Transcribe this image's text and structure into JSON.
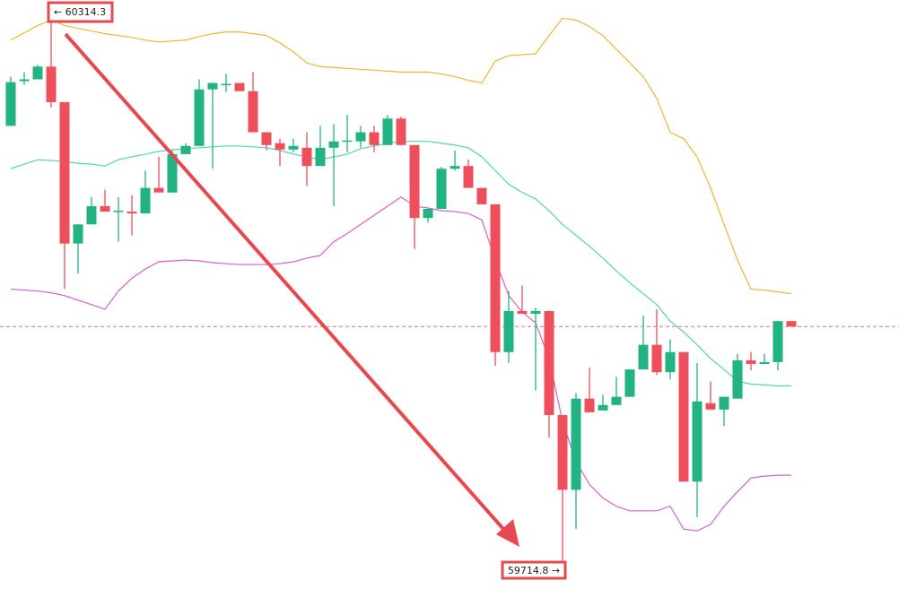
{
  "chart_data": {
    "type": "candlestick",
    "up_color": "#22b383",
    "down_color": "#ef4f5b",
    "open": [
      60194,
      60243,
      60245,
      60259,
      60220,
      60065,
      60086,
      60106,
      60100,
      60100,
      60098,
      60126,
      60121,
      60163,
      60172,
      60234,
      60239,
      60241,
      60232,
      60187,
      60175,
      60168,
      60170,
      60150,
      60170,
      60177,
      60177,
      60187,
      60173,
      60202,
      60173,
      60093,
      60103,
      60147,
      60150,
      60126,
      60108,
      59946,
      59991,
      59988,
      59991,
      59877,
      59795,
      59895,
      59882,
      59888,
      59897,
      59927,
      59954,
      59924,
      59946,
      59804,
      59890,
      59883,
      59895,
      59937,
      59933,
      59935,
      59980
    ],
    "high": [
      60248,
      60253,
      60261,
      60314.3,
      60220,
      60086,
      60116,
      60124,
      60116,
      60118,
      60145,
      60160,
      60167,
      60175,
      60245,
      60241,
      60251,
      60241,
      60253,
      60187,
      60180,
      60180,
      60187,
      60194,
      60196,
      60206,
      60194,
      60194,
      60206,
      60204,
      60173,
      60103,
      60149,
      60167,
      60157,
      60126,
      60108,
      60013,
      60019,
      59995,
      59991,
      59877,
      59901,
      59929,
      59899,
      59919,
      59927,
      59986,
      59993,
      59960,
      59946,
      59934,
      59914,
      59897,
      59944,
      59946,
      59944,
      59980,
      59980
    ],
    "low": [
      60194,
      60239,
      60245,
      60214,
      60015,
      60032,
      60086,
      60100,
      60067,
      60074,
      60098,
      60121,
      60121,
      60163,
      60172,
      60147,
      60231,
      60232,
      60187,
      60167,
      60150,
      60165,
      60128,
      60150,
      60106,
      60165,
      60170,
      60165,
      60173,
      60173,
      60059,
      60088,
      60103,
      60145,
      60126,
      60108,
      59931,
      59934,
      59988,
      59904,
      59852,
      59714.8,
      59752,
      59880,
      59882,
      59888,
      59897,
      59927,
      59921,
      59916,
      59804,
      59765,
      59883,
      59865,
      59895,
      59926,
      59933,
      59926,
      59974
    ],
    "close": [
      60242,
      60245,
      60259,
      60220,
      60065,
      60086,
      60106,
      60100,
      60101,
      60098,
      60126,
      60121,
      60163,
      60172,
      60234,
      60241,
      60240,
      60232,
      60187,
      60173,
      60168,
      60172,
      60150,
      60170,
      60177,
      60178,
      60187,
      60173,
      60202,
      60173,
      60093,
      60103,
      60147,
      60150,
      60126,
      60108,
      59946,
      59991,
      59988,
      59991,
      59877,
      59795,
      59895,
      59880,
      59888,
      59897,
      59927,
      59954,
      59924,
      59946,
      59804,
      59892,
      59883,
      59897,
      59937,
      59933,
      59935,
      59980,
      59974
    ],
    "bands": [
      {
        "color": "#f0b530",
        "values": [
          60288,
          60296,
          60304,
          60310,
          60304,
          60301,
          60298,
          60295,
          60293,
          60291,
          60288,
          60286,
          60287,
          60288,
          60292,
          60295,
          60297,
          60297,
          60295,
          60293,
          60285,
          60275,
          60263,
          60259,
          60258,
          60257,
          60256,
          60255,
          60254,
          60253,
          60253,
          60253,
          60251,
          60248,
          60244,
          60241,
          60265,
          60271,
          60272,
          60273,
          60293,
          60312,
          60310,
          60303,
          60293,
          60278,
          60263,
          60248,
          60224,
          60187,
          60180,
          60160,
          60126,
          60086,
          60047,
          60015,
          60014,
          60012,
          60010
        ]
      },
      {
        "color": "#4fd6b3",
        "values": [
          60147,
          60152,
          60157,
          60156,
          60155,
          60153,
          60152,
          60150,
          60157,
          60160,
          60163,
          60166,
          60168,
          60169,
          60170,
          60171,
          60172,
          60172,
          60171,
          60170,
          60167,
          60163,
          60160,
          60157,
          60160,
          60163,
          60169,
          60172,
          60175,
          60177,
          60177,
          60177,
          60175,
          60173,
          60170,
          60160,
          60145,
          60130,
          60121,
          60114,
          60101,
          60086,
          60074,
          60062,
          60049,
          60035,
          60022,
          60010,
          59998,
          59980,
          59968,
          59954,
          59939,
          59927,
          59914,
          59911,
          59910,
          59909,
          59909
        ]
      },
      {
        "color": "#d65fcf",
        "values": [
          60015,
          60014,
          60013,
          60011,
          60008,
          60003,
          59998,
          59993,
          60013,
          60027,
          60037,
          60045,
          60046,
          60047,
          60046,
          60044,
          60043,
          60042,
          60042,
          60042,
          60043,
          60045,
          60049,
          60052,
          60067,
          60076,
          60086,
          60096,
          60106,
          60116,
          60106,
          60104,
          60101,
          60100,
          60098,
          60091,
          60047,
          60008,
          59990,
          59978,
          59939,
          59870,
          59826,
          59801,
          59786,
          59777,
          59772,
          59772,
          59772,
          59777,
          59752,
          59750,
          59757,
          59777,
          59793,
          59808,
          59810,
          59811,
          59811
        ]
      }
    ],
    "high_label": "← 60314.3",
    "low_label": "59714.8 →"
  }
}
